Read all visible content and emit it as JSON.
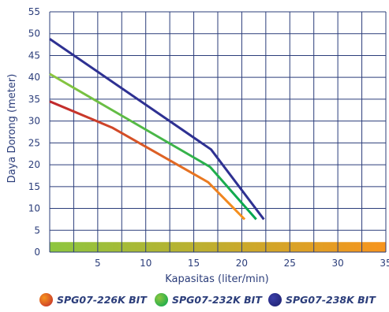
{
  "chart_data": {
    "type": "line",
    "xlabel": "Kapasitas (liter/min)",
    "ylabel": "Daya Dorong (meter)",
    "xlim": [
      0,
      35
    ],
    "ylim": [
      0,
      55
    ],
    "x_ticks": [
      "5",
      "10",
      "15",
      "20",
      "25",
      "30",
      "35"
    ],
    "y_ticks": [
      "0",
      "5",
      "10",
      "15",
      "20",
      "25",
      "30",
      "35",
      "40",
      "45",
      "50",
      "55"
    ],
    "grid": true,
    "series": [
      {
        "name": "SPG07-226K BIT",
        "start_color": "#c0272d",
        "end_color": "#f7941d",
        "points": [
          [
            0,
            34.5
          ],
          [
            6.5,
            28.5
          ],
          [
            16.5,
            16
          ],
          [
            20.3,
            7.5
          ]
        ]
      },
      {
        "name": "SPG07-232K BIT",
        "start_color": "#8dc63f",
        "end_color": "#00a651",
        "points": [
          [
            0,
            40.8
          ],
          [
            16.7,
            19.5
          ],
          [
            21.5,
            7.5
          ]
        ]
      },
      {
        "name": "SPG07-238K BIT",
        "start_color": "#2e3192",
        "end_color": "#2e3192",
        "points": [
          [
            0,
            48.8
          ],
          [
            16.8,
            23.5
          ],
          [
            22.3,
            7.5
          ]
        ]
      }
    ]
  },
  "legend": [
    {
      "label": "SPG07-226K BIT",
      "dot_from": "#f7941d",
      "dot_to": "#c0272d"
    },
    {
      "label": "SPG07-232K BIT",
      "dot_from": "#8dc63f",
      "dot_to": "#00a651"
    },
    {
      "label": "SPG07-238K BIT",
      "dot_from": "#3a3ea8",
      "dot_to": "#1c1f6b"
    }
  ],
  "colors": {
    "axis_text": "#2b3d7a",
    "grid": "#2b3d7a",
    "bottom_band_from": "#8dc63f",
    "bottom_band_to": "#f7941d"
  }
}
